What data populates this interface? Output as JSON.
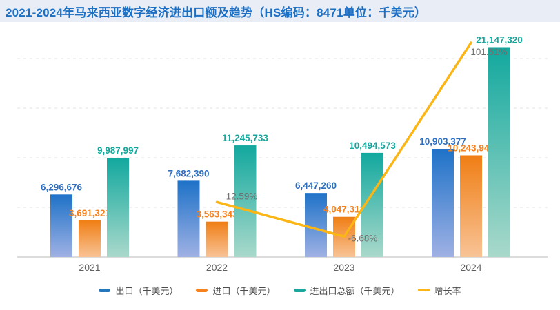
{
  "header": {
    "title": "2021-2024年马来西亚数字经济进出口额及趋势（HS编码：8471单位：千美元）"
  },
  "chart_data": {
    "type": "bar+line",
    "title": "2021-2024年马来西亚数字经济进出口额及趋势（HS编码：8471单位：千美元）",
    "categories": [
      "2021",
      "2022",
      "2023",
      "2024"
    ],
    "unit_note": "千美元",
    "y_axis_visible": false,
    "ylim": [
      0,
      25000000
    ],
    "grid": "dashed-horizontal",
    "legend_position": "bottom",
    "series": [
      {
        "key": "export",
        "name": "出口（千美元）",
        "type": "bar",
        "values": [
          6296676,
          7682390,
          6447260,
          10903377
        ],
        "labels": [
          "6,296,676",
          "7,682,390",
          "6,447,260",
          "10,903,377"
        ],
        "gradient": [
          "#1e72c8",
          "#9fb1e4"
        ],
        "label_color": "#2d6fc1",
        "legend_color": "#2577be"
      },
      {
        "key": "import",
        "name": "进口（千美元）",
        "type": "bar",
        "values": [
          3691321,
          3563343,
          4047313,
          10243943
        ],
        "labels": [
          "3,691,321",
          "3,563,343",
          "4,047,313",
          "10,243,943"
        ],
        "gradient": [
          "#f07e14",
          "#f8c396"
        ],
        "label_color": "#f5821e",
        "legend_color": "#f5821f"
      },
      {
        "key": "total",
        "name": "进出口总额（千美元）",
        "type": "bar",
        "values": [
          9987997,
          11245733,
          10494573,
          21147320
        ],
        "labels": [
          "9,987,997",
          "11,245,733",
          "10,494,573",
          "21,147,320"
        ],
        "gradient": [
          "#12a89e",
          "#a9d9cb"
        ],
        "label_color": "#14a89c",
        "legend_color": "#1ba79b"
      },
      {
        "key": "growth-rate",
        "name": "增长率",
        "type": "line",
        "values": [
          null,
          12.59,
          -6.68,
          101.51
        ],
        "labels": [
          "",
          "12.59%",
          "-6.68%",
          "101.51%"
        ],
        "color": "#fbb515",
        "label_color": "#6f6f6f",
        "legend_color": "#fbb515"
      }
    ],
    "axis_colors": {
      "axis_line": "#dcdcdc",
      "grid_line": "#e3e3e3",
      "x_label": "#5f5f5f"
    }
  }
}
